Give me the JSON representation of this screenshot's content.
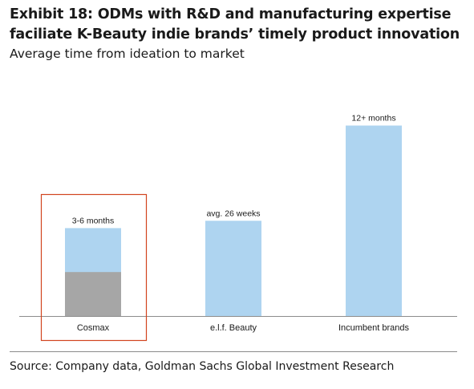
{
  "title": "Exhibit 18: ODMs with R&D and manufacturing expertise faciliate K-Beauty indie brands’ timely product innovation",
  "subtitle": "Average time from ideation to market",
  "source": "Source: Company data, Goldman Sachs Global Investment Research",
  "chart_data": {
    "type": "bar",
    "categories": [
      "Cosmax",
      "e.l.f. Beauty",
      "Incumbent brands"
    ],
    "values": [
      24,
      26,
      52
    ],
    "segments": [
      {
        "category": "Cosmax",
        "low": 12,
        "high": 24
      }
    ],
    "data_labels": [
      "3-6 months",
      "avg. 26 weeks",
      "12+ months"
    ],
    "highlighted_category": "Cosmax",
    "ylim": [
      0,
      60
    ],
    "unit": "weeks",
    "xlabel": "",
    "ylabel": "",
    "grid": false,
    "legend": "none",
    "colors": {
      "bar": "#aed4f0",
      "segment": "#a6a6a6",
      "highlight_box": "#d2441f",
      "axis": "#8c8c8c",
      "text": "#1a1a1a"
    }
  }
}
